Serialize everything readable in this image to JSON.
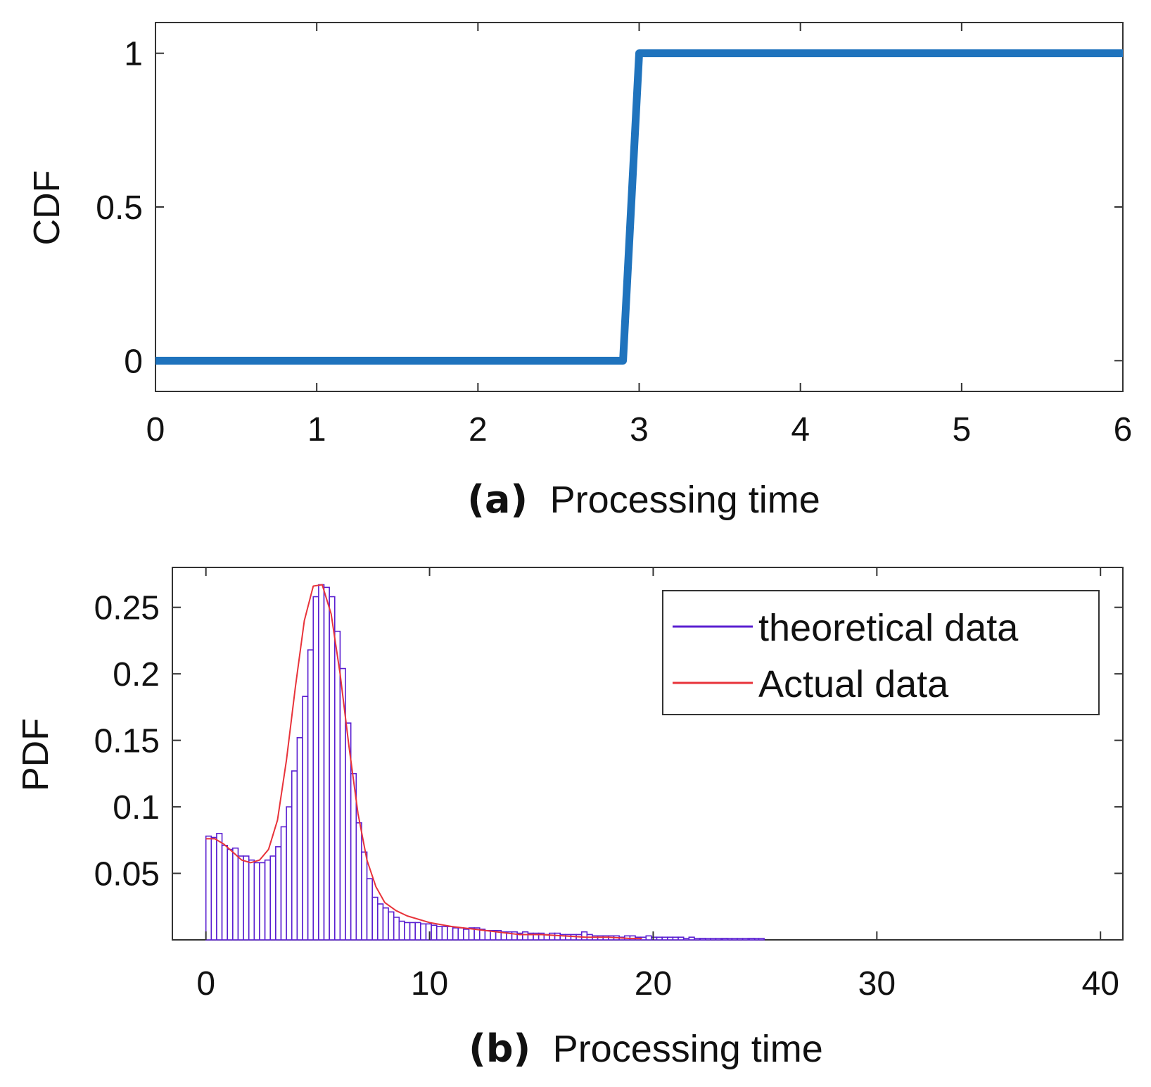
{
  "chart_data": [
    {
      "type": "line",
      "caption_label": "(a)",
      "xlabel": "Processing time",
      "ylabel": "CDF",
      "xlim": [
        0,
        6
      ],
      "ylim": [
        -0.1,
        1.1
      ],
      "xticks": [
        0,
        1,
        2,
        3,
        4,
        5,
        6
      ],
      "xtick_labels": [
        "0",
        "1",
        "2",
        "3",
        "4",
        "5",
        "6"
      ],
      "yticks": [
        0,
        0.5,
        1
      ],
      "ytick_labels": [
        "0",
        "0.5",
        "1"
      ],
      "grid": false,
      "series": [
        {
          "name": "CDF",
          "color": "#1f73bd",
          "x": [
            0,
            2.9,
            3.0,
            6
          ],
          "y": [
            0,
            0,
            1,
            1
          ]
        }
      ]
    },
    {
      "type": "bar",
      "caption_label": "(b)",
      "xlabel": "Processing time",
      "ylabel": "PDF",
      "xlim": [
        -1.5,
        41
      ],
      "ylim": [
        0,
        0.28
      ],
      "xticks": [
        0,
        10,
        20,
        30,
        40
      ],
      "xtick_labels": [
        "0",
        "10",
        "20",
        "30",
        "40"
      ],
      "yticks": [
        0.05,
        0.1,
        0.15,
        0.2,
        0.25
      ],
      "ytick_labels": [
        "0.05",
        "0.1",
        "0.15",
        "0.2",
        "0.25"
      ],
      "grid": false,
      "legend_position": "top-right",
      "histogram": {
        "name": "theoretical data",
        "color": "#5a1fd1",
        "bin_width": 0.24,
        "bin_start": 0,
        "values": [
          0.078,
          0.077,
          0.08,
          0.071,
          0.068,
          0.069,
          0.063,
          0.063,
          0.06,
          0.058,
          0.058,
          0.06,
          0.063,
          0.07,
          0.085,
          0.1,
          0.127,
          0.152,
          0.183,
          0.218,
          0.258,
          0.267,
          0.265,
          0.258,
          0.232,
          0.204,
          0.163,
          0.125,
          0.088,
          0.066,
          0.046,
          0.032,
          0.027,
          0.024,
          0.021,
          0.017,
          0.014,
          0.013,
          0.013,
          0.013,
          0.012,
          0.012,
          0.011,
          0.01,
          0.01,
          0.01,
          0.009,
          0.009,
          0.008,
          0.009,
          0.009,
          0.008,
          0.007,
          0.007,
          0.007,
          0.006,
          0.006,
          0.006,
          0.005,
          0.006,
          0.005,
          0.005,
          0.005,
          0.004,
          0.005,
          0.005,
          0.004,
          0.004,
          0.004,
          0.004,
          0.006,
          0.004,
          0.003,
          0.003,
          0.003,
          0.003,
          0.003,
          0.002,
          0.003,
          0.003,
          0.002,
          0.002,
          0.003,
          0.002,
          0.002,
          0.002,
          0.002,
          0.002,
          0.002,
          0.001,
          0.002,
          0.001,
          0.001,
          0.001,
          0.001,
          0.001,
          0.001,
          0.001,
          0.001,
          0.001,
          0.001,
          0.001,
          0.001,
          0.001
        ],
        "sparse_bins": [
          {
            "x": 22.1,
            "value": 0.001
          },
          {
            "x": 23.1,
            "value": 0.001
          },
          {
            "x": 24.3,
            "value": 0.001
          }
        ]
      },
      "series": [
        {
          "name": "Actual data",
          "color": "#e8333a",
          "x": [
            0,
            0.4,
            0.8,
            1.2,
            1.6,
            2.0,
            2.4,
            2.8,
            3.2,
            3.6,
            4.0,
            4.4,
            4.8,
            5.2,
            5.6,
            6.0,
            6.4,
            6.8,
            7.2,
            7.6,
            8.0,
            8.5,
            9.0,
            10,
            11,
            12,
            13,
            14,
            15,
            16,
            17,
            18,
            19,
            19.5
          ],
          "y": [
            0.076,
            0.076,
            0.072,
            0.066,
            0.06,
            0.058,
            0.06,
            0.068,
            0.09,
            0.135,
            0.19,
            0.24,
            0.266,
            0.267,
            0.245,
            0.2,
            0.145,
            0.095,
            0.06,
            0.04,
            0.028,
            0.022,
            0.018,
            0.013,
            0.01,
            0.008,
            0.006,
            0.004,
            0.004,
            0.003,
            0.002,
            0.002,
            0.001,
            0.001
          ]
        }
      ]
    }
  ]
}
